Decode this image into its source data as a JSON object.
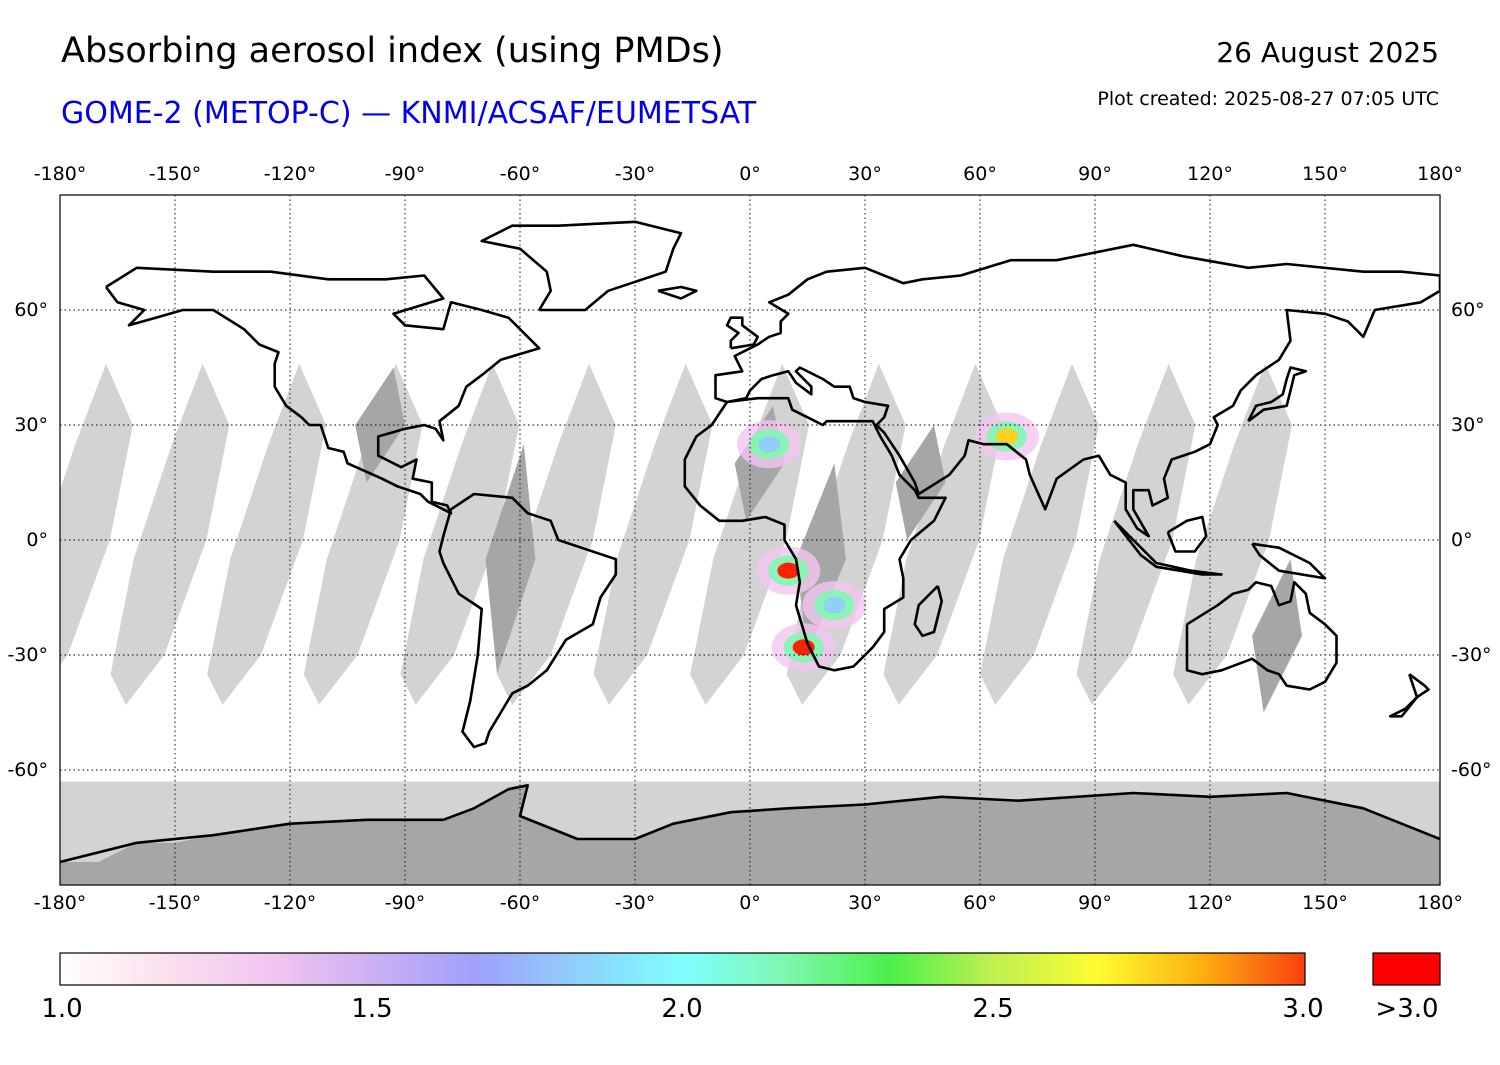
{
  "title": "Absorbing aerosol index (using PMDs)",
  "subtitle": "GOME-2 (METOP-C) — KNMI/ACSAF/EUMETSAT",
  "date": "26 August 2025",
  "plot_created": "Plot created: 2025-08-27 07:05 UTC",
  "map": {
    "projection": "equirectangular",
    "lon_range": [
      -180,
      180
    ],
    "lat_range": [
      -90,
      90
    ],
    "lon_ticks": [
      "-180°",
      "-150°",
      "-120°",
      "-90°",
      "-60°",
      "-30°",
      "0°",
      "30°",
      "60°",
      "90°",
      "120°",
      "150°",
      "180°"
    ],
    "lat_ticks": [
      "60°",
      "30°",
      "0°",
      "-30°",
      "-60°"
    ],
    "gridlines": "dotted",
    "no_data_color": "#d3d3d3",
    "land_no_data_color": "#a6a6a6",
    "coastline_color": "#000000",
    "aerosol_hotspots": [
      {
        "region": "Central Africa (Congo/Angola)",
        "lon": 10,
        "lat": -8,
        "level": ">3.0"
      },
      {
        "region": "Southern Africa west coast",
        "lon": 14,
        "lat": -28,
        "level": ">3.0"
      },
      {
        "region": "Arabian Sea / Pakistan",
        "lon": 67,
        "lat": 27,
        "level": "2.5-3.0"
      },
      {
        "region": "Sahara / West Africa",
        "lon": 5,
        "lat": 25,
        "level": "1.5-2.5"
      },
      {
        "region": "Southern Africa interior",
        "lon": 22,
        "lat": -17,
        "level": "1.5-2.5"
      }
    ]
  },
  "colorbar": {
    "range": [
      1.0,
      3.0
    ],
    "stops": [
      "#ffffff",
      "#fbe0ee",
      "#f2c6f0",
      "#cdb0f2",
      "#a0a0fc",
      "#8fd0fa",
      "#7fffff",
      "#7ff7b0",
      "#4cf04c",
      "#c0f050",
      "#fdfd30",
      "#fdb010",
      "#f84010"
    ],
    "over_color": "#ff0000",
    "labels": [
      "1.0",
      "1.5",
      "2.0",
      "2.5",
      "3.0"
    ],
    "over_label": ">3.0"
  }
}
